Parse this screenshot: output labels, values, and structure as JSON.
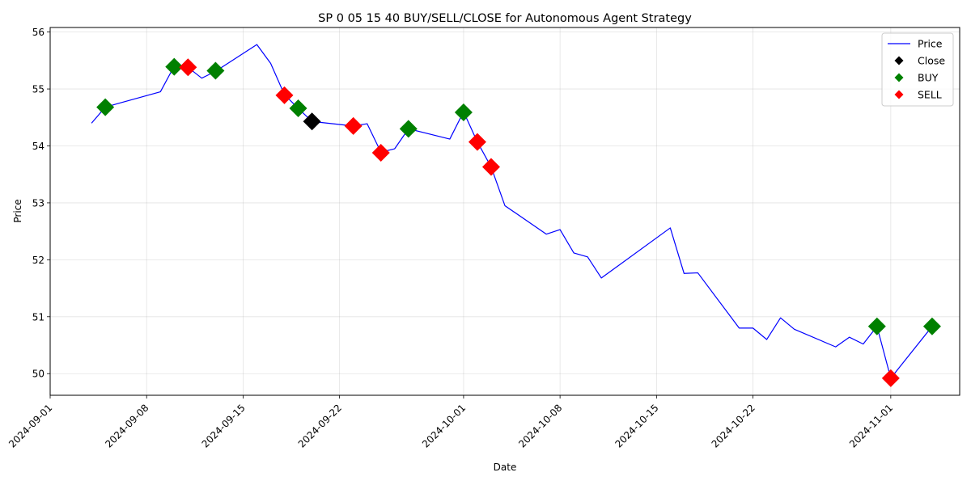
{
  "chart_data": {
    "type": "line",
    "title": "SP 0 05 15 40 BUY/SELL/CLOSE for Autonomous Agent Strategy",
    "xlabel": "Date",
    "ylabel": "Price",
    "xlim": [
      "2024-09-01",
      "2024-11-06"
    ],
    "ylim": [
      49.62,
      56.08
    ],
    "x_ticks": [
      "2024-09-01",
      "2024-09-08",
      "2024-09-15",
      "2024-09-22",
      "2024-10-01",
      "2024-10-08",
      "2024-10-15",
      "2024-10-22",
      "2024-11-01"
    ],
    "y_ticks": [
      50,
      51,
      52,
      53,
      54,
      55,
      56
    ],
    "grid": true,
    "legend_position": "top-right",
    "colors": {
      "price": "#0000ff",
      "close": "#000000",
      "buy": "#008000",
      "sell": "#ff0000"
    },
    "series": [
      {
        "name": "Price",
        "type": "line",
        "points": [
          [
            "2024-09-04",
            54.4
          ],
          [
            "2024-09-05",
            54.68
          ],
          [
            "2024-09-06",
            54.75
          ],
          [
            "2024-09-09",
            54.95
          ],
          [
            "2024-09-10",
            55.4
          ],
          [
            "2024-09-11",
            55.38
          ],
          [
            "2024-09-12",
            55.19
          ],
          [
            "2024-09-13",
            55.31
          ],
          [
            "2024-09-16",
            55.78
          ],
          [
            "2024-09-17",
            55.45
          ],
          [
            "2024-09-18",
            54.9
          ],
          [
            "2024-09-19",
            54.66
          ],
          [
            "2024-09-20",
            54.43
          ],
          [
            "2024-09-23",
            54.35
          ],
          [
            "2024-09-24",
            54.39
          ],
          [
            "2024-09-25",
            53.89
          ],
          [
            "2024-09-26",
            53.95
          ],
          [
            "2024-09-27",
            54.3
          ],
          [
            "2024-09-30",
            54.12
          ],
          [
            "2024-10-01",
            54.6
          ],
          [
            "2024-10-02",
            54.07
          ],
          [
            "2024-10-03",
            53.63
          ],
          [
            "2024-10-04",
            52.95
          ],
          [
            "2024-10-07",
            52.45
          ],
          [
            "2024-10-08",
            52.53
          ],
          [
            "2024-10-09",
            52.12
          ],
          [
            "2024-10-10",
            52.05
          ],
          [
            "2024-10-11",
            51.68
          ],
          [
            "2024-10-16",
            52.56
          ],
          [
            "2024-10-17",
            51.76
          ],
          [
            "2024-10-18",
            51.77
          ],
          [
            "2024-10-21",
            50.8
          ],
          [
            "2024-10-22",
            50.8
          ],
          [
            "2024-10-23",
            50.6
          ],
          [
            "2024-10-24",
            50.98
          ],
          [
            "2024-10-25",
            50.78
          ],
          [
            "2024-10-28",
            50.47
          ],
          [
            "2024-10-29",
            50.64
          ],
          [
            "2024-10-30",
            50.52
          ],
          [
            "2024-10-31",
            50.83
          ],
          [
            "2024-11-01",
            49.92
          ],
          [
            "2024-11-04",
            50.83
          ]
        ]
      },
      {
        "name": "Close",
        "type": "scatter",
        "points": [
          [
            "2024-09-20",
            54.43
          ]
        ]
      },
      {
        "name": "BUY",
        "type": "scatter",
        "points": [
          [
            "2024-09-05",
            54.68
          ],
          [
            "2024-09-10",
            55.39
          ],
          [
            "2024-09-13",
            55.32
          ],
          [
            "2024-09-19",
            54.66
          ],
          [
            "2024-09-27",
            54.3
          ],
          [
            "2024-10-01",
            54.59
          ],
          [
            "2024-10-31",
            50.83
          ],
          [
            "2024-11-04",
            50.83
          ]
        ]
      },
      {
        "name": "SELL",
        "type": "scatter",
        "points": [
          [
            "2024-09-11",
            55.38
          ],
          [
            "2024-09-18",
            54.89
          ],
          [
            "2024-09-23",
            54.35
          ],
          [
            "2024-09-25",
            53.88
          ],
          [
            "2024-10-02",
            54.07
          ],
          [
            "2024-10-03",
            53.63
          ],
          [
            "2024-11-01",
            49.92
          ]
        ]
      }
    ]
  }
}
